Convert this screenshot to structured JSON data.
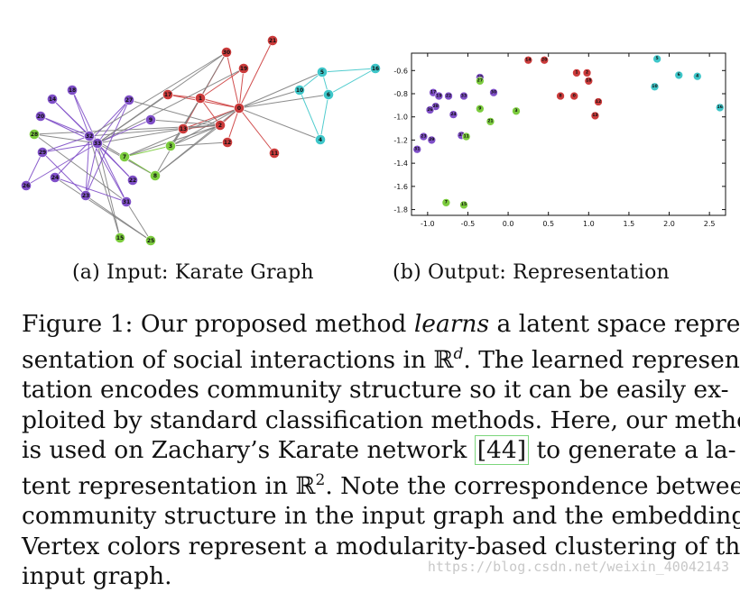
{
  "figure": {
    "subcaption_a": "(a) Input: Karate Graph",
    "subcaption_b": "(b) Output: Representation",
    "caption_lines": [
      [
        "Figure 1: Our proposed method ",
        {
          "i": "learns"
        },
        " a latent space repre-"
      ],
      [
        "sentation of social interactions in ℝ",
        {
          "sup": "d"
        },
        ". The learned represen-"
      ],
      [
        "tation encodes community structure so it can be easily ex-"
      ],
      [
        "ploited by standard classification methods. Here, our method"
      ],
      [
        "is used on Zachary’s Karate network ",
        {
          "box": "[44]"
        },
        " to generate a la-"
      ],
      [
        "tent representation in ℝ",
        {
          "sup": "2"
        },
        ". Note the correspondence between"
      ],
      [
        "community structure in the input graph and the embedding."
      ],
      [
        "Vertex colors represent a modularity-based clustering of the"
      ],
      [
        "input graph."
      ]
    ],
    "watermark": "https://blog.csdn.net/weixin_40042143"
  },
  "colors": {
    "red": "#cc3b3b",
    "teal": "#3ec6c9",
    "purple": "#7f4fc8",
    "green": "#7ccc3e",
    "edge_gray": "#808080",
    "edge_mix": "#a07a3a"
  },
  "graph": {
    "nodes": [
      {
        "id": "0",
        "group": "red",
        "x": 0.0,
        "y": 0.0
      },
      {
        "id": "1",
        "group": "red",
        "x": 0.0,
        "y": 0.0
      },
      {
        "id": "2",
        "group": "red",
        "x": 0.0,
        "y": 0.0
      },
      {
        "id": "3",
        "group": "green",
        "x": 0.0,
        "y": 0.0
      }
    ]
  },
  "chart_data": {
    "type": "scatter",
    "xlim": [
      -1.2,
      2.7
    ],
    "ylim": [
      -1.85,
      -0.45
    ],
    "xticks": [
      "-1.0",
      "-0.5",
      "0.0",
      "0.5",
      "1.0",
      "1.5",
      "2.0",
      "2.5"
    ],
    "xtick_values": [
      -1.0,
      -0.5,
      0.0,
      0.5,
      1.0,
      1.5,
      2.0,
      2.5
    ],
    "yticks": [
      "-0.6",
      "-0.8",
      "-1.0",
      "-1.2",
      "-1.4",
      "-1.6",
      "-1.8"
    ],
    "ytick_values": [
      -0.6,
      -0.8,
      -1.0,
      -1.2,
      -1.4,
      -1.6,
      -1.8
    ],
    "grid": false,
    "points": [
      {
        "label": "14",
        "group": "red",
        "x": 0.25,
        "y": -0.51
      },
      {
        "label": "20",
        "group": "red",
        "x": 0.45,
        "y": -0.51
      },
      {
        "label": "1",
        "group": "red",
        "x": 0.85,
        "y": -0.62
      },
      {
        "label": "2",
        "group": "red",
        "x": 0.98,
        "y": -0.62
      },
      {
        "label": "18",
        "group": "red",
        "x": 1.0,
        "y": -0.69
      },
      {
        "label": "8",
        "group": "red",
        "x": 0.65,
        "y": -0.82
      },
      {
        "label": "0",
        "group": "red",
        "x": 0.82,
        "y": -0.82
      },
      {
        "label": "12",
        "group": "red",
        "x": 1.12,
        "y": -0.87
      },
      {
        "label": "13",
        "group": "red",
        "x": 1.08,
        "y": -0.99
      },
      {
        "label": "5",
        "group": "teal",
        "x": 1.85,
        "y": -0.5
      },
      {
        "label": "10",
        "group": "teal",
        "x": 1.82,
        "y": -0.74
      },
      {
        "label": "6",
        "group": "teal",
        "x": 2.12,
        "y": -0.64
      },
      {
        "label": "4",
        "group": "teal",
        "x": 2.35,
        "y": -0.65
      },
      {
        "label": "16",
        "group": "teal",
        "x": 2.63,
        "y": -0.92
      },
      {
        "label": "25",
        "group": "purple",
        "x": -0.35,
        "y": -0.66
      },
      {
        "label": "33",
        "group": "purple",
        "x": -0.55,
        "y": -0.82
      },
      {
        "label": "30",
        "group": "purple",
        "x": -0.18,
        "y": -0.79
      },
      {
        "label": "17",
        "group": "purple",
        "x": -0.93,
        "y": -0.79
      },
      {
        "label": "19",
        "group": "purple",
        "x": -0.86,
        "y": -0.82
      },
      {
        "label": "22",
        "group": "purple",
        "x": -0.74,
        "y": -0.82
      },
      {
        "label": "28",
        "group": "purple",
        "x": -0.9,
        "y": -0.91
      },
      {
        "label": "26",
        "group": "purple",
        "x": -0.97,
        "y": -0.94
      },
      {
        "label": "24",
        "group": "purple",
        "x": -0.68,
        "y": -0.98
      },
      {
        "label": "23",
        "group": "purple",
        "x": -1.05,
        "y": -1.17
      },
      {
        "label": "29",
        "group": "purple",
        "x": -0.95,
        "y": -1.2
      },
      {
        "label": "31",
        "group": "purple",
        "x": -1.13,
        "y": -1.28
      },
      {
        "label": "32",
        "group": "purple",
        "x": -0.58,
        "y": -1.16
      },
      {
        "label": "27",
        "group": "green",
        "x": -0.35,
        "y": -0.69
      },
      {
        "label": "9",
        "group": "green",
        "x": -0.35,
        "y": -0.93
      },
      {
        "label": "3",
        "group": "green",
        "x": 0.1,
        "y": -0.95
      },
      {
        "label": "21",
        "group": "green",
        "x": -0.22,
        "y": -1.04
      },
      {
        "label": "11",
        "group": "green",
        "x": -0.52,
        "y": -1.17
      },
      {
        "label": "15",
        "group": "green",
        "x": -0.55,
        "y": -1.76
      },
      {
        "label": "7",
        "group": "green",
        "x": -0.77,
        "y": -1.74
      }
    ]
  }
}
